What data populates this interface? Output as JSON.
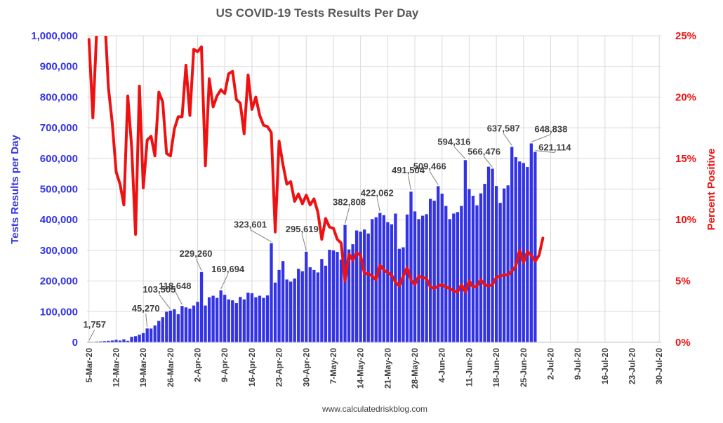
{
  "chart_data": {
    "type": "bar",
    "title": "US COVID-19 Tests Results Per Day",
    "footer": "www.calculatedriskblog.com",
    "ylabel": "Tests Results per Day",
    "ylabel_right": "Percent Positive",
    "ylim": [
      0,
      1000000
    ],
    "ylim_right": [
      0,
      25
    ],
    "grid": true,
    "x_start": "2020-03-05",
    "x_end": "2020-07-30",
    "yticks": [
      "0",
      "100,000",
      "200,000",
      "300,000",
      "400,000",
      "500,000",
      "600,000",
      "700,000",
      "800,000",
      "900,000",
      "1,000,000"
    ],
    "yticks_right": [
      "0%",
      "5%",
      "10%",
      "15%",
      "20%",
      "25%"
    ],
    "xticks": [
      "5-Mar-20",
      "12-Mar-20",
      "19-Mar-20",
      "26-Mar-20",
      "2-Apr-20",
      "9-Apr-20",
      "16-Apr-20",
      "23-Apr-20",
      "30-Apr-20",
      "7-May-20",
      "14-May-20",
      "21-May-20",
      "28-May-20",
      "4-Jun-20",
      "11-Jun-20",
      "18-Jun-20",
      "25-Jun-20",
      "2-Jul-20",
      "9-Jul-20",
      "16-Jul-20",
      "23-Jul-20",
      "30-Jul-20"
    ],
    "series": [
      {
        "name": "Tests Results per Day",
        "type": "bar",
        "color": "#3333e6",
        "values": [
          1757,
          1500,
          2500,
          3000,
          4000,
          5000,
          6000,
          8000,
          6000,
          10000,
          5000,
          18000,
          20000,
          25000,
          30000,
          45270,
          45000,
          55000,
          70000,
          82000,
          100000,
          103505,
          108000,
          92000,
          118648,
          114000,
          110000,
          120000,
          132000,
          229260,
          120000,
          147000,
          152000,
          145000,
          169694,
          155000,
          140000,
          137000,
          128000,
          148000,
          140000,
          162000,
          160000,
          147000,
          152000,
          145000,
          153000,
          323601,
          195000,
          236000,
          265000,
          205000,
          198000,
          208000,
          240000,
          232000,
          295619,
          245000,
          236000,
          228000,
          272000,
          250000,
          302000,
          300000,
          295000,
          270000,
          382808,
          303000,
          320000,
          365000,
          361000,
          368000,
          355000,
          402000,
          408000,
          422062,
          415000,
          392000,
          385000,
          420000,
          305000,
          310000,
          417000,
          491504,
          427000,
          402000,
          413000,
          418000,
          468000,
          462000,
          509466,
          485000,
          445000,
          402000,
          420000,
          425000,
          445000,
          594316,
          500000,
          478000,
          447000,
          486000,
          517000,
          573000,
          566476,
          510000,
          455000,
          502000,
          512000,
          637587,
          604000,
          590000,
          585000,
          572000,
          648838,
          621114
        ]
      },
      {
        "name": "Percent Positive",
        "type": "line",
        "color": "#ee1111",
        "values": [
          24.7,
          18.3,
          25.5,
          26.8,
          27.0,
          20.8,
          17.9,
          13.9,
          12.9,
          11.2,
          20.1,
          15.9,
          8.8,
          20.9,
          12.6,
          16.5,
          16.8,
          15.2,
          20.4,
          19.6,
          15.4,
          15.2,
          17.4,
          18.4,
          18.4,
          22.6,
          18.5,
          23.9,
          23.7,
          24.1,
          14.4,
          21.5,
          19.2,
          20.1,
          20.6,
          20.3,
          21.9,
          22.1,
          19.8,
          19.5,
          17.0,
          21.8,
          19.0,
          20.0,
          18.5,
          17.7,
          17.6,
          17.1,
          9.0,
          16.4,
          14.5,
          12.9,
          13.1,
          11.5,
          12.1,
          11.3,
          12.0,
          11.2,
          11.7,
          10.6,
          8.4,
          10.1,
          9.4,
          9.3,
          8.4,
          8.1,
          5.0,
          7.2,
          6.7,
          7.3,
          7.1,
          5.6,
          5.6,
          5.4,
          5.1,
          6.3,
          5.9,
          5.7,
          5.5,
          4.9,
          4.6,
          5.4,
          6.1,
          5.1,
          4.7,
          5.4,
          5.3,
          5.2,
          4.5,
          4.4,
          4.6,
          4.7,
          4.5,
          4.4,
          4.2,
          4.1,
          4.7,
          4.1,
          5.0,
          4.5,
          4.6,
          5.1,
          4.7,
          4.6,
          4.7,
          5.3,
          5.4,
          5.5,
          5.5,
          5.8,
          6.2,
          7.5,
          6.5,
          7.4,
          7.1,
          6.6,
          7.1,
          8.5
        ]
      }
    ],
    "annotations": [
      {
        "label": "1,757",
        "index": 0
      },
      {
        "label": "45,270",
        "index": 15
      },
      {
        "label": "103,505",
        "index": 21
      },
      {
        "label": "118,648",
        "index": 24
      },
      {
        "label": "229,260",
        "index": 29
      },
      {
        "label": "169,694",
        "index": 34
      },
      {
        "label": "323,601",
        "index": 47
      },
      {
        "label": "295,619",
        "index": 56
      },
      {
        "label": "382,808",
        "index": 66
      },
      {
        "label": "422,062",
        "index": 75
      },
      {
        "label": "491,504",
        "index": 83
      },
      {
        "label": "509,466",
        "index": 90
      },
      {
        "label": "594,316",
        "index": 97
      },
      {
        "label": "566,476",
        "index": 104
      },
      {
        "label": "637,587",
        "index": 109
      },
      {
        "label": "648,838",
        "index": 114
      },
      {
        "label": "621,114",
        "index": 115
      }
    ]
  }
}
